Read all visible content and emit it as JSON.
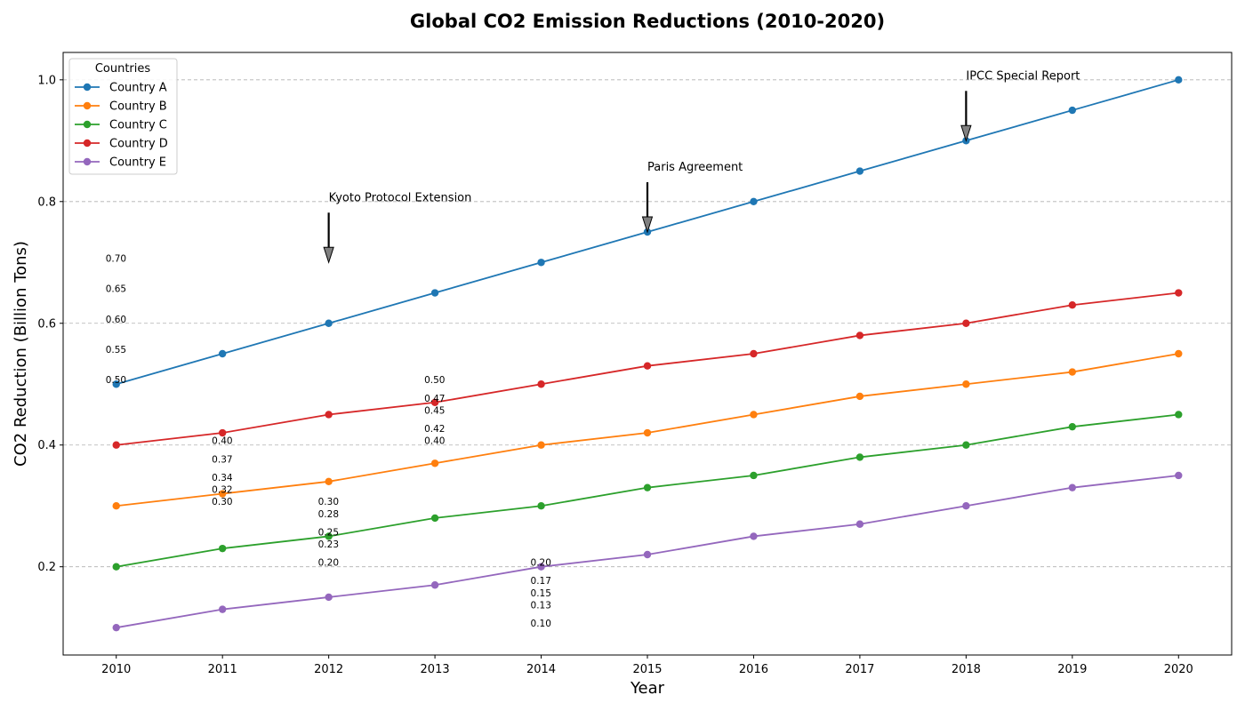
{
  "chart_data": {
    "type": "line",
    "title": "Global CO2 Emission Reductions (2010-2020)",
    "xlabel": "Year",
    "ylabel": "CO2 Reduction (Billion Tons)",
    "x": [
      2010,
      2011,
      2012,
      2013,
      2014,
      2015,
      2016,
      2017,
      2018,
      2019,
      2020
    ],
    "x_tick_labels": [
      "2010",
      "2011",
      "2012",
      "2013",
      "2014",
      "2015",
      "2016",
      "2017",
      "2018",
      "2019",
      "2020"
    ],
    "xlim": [
      2009.5,
      2020.5
    ],
    "ylim": [
      0.055,
      1.045
    ],
    "y_ticks": [
      0.2,
      0.4,
      0.6,
      0.8,
      1.0
    ],
    "y_tick_labels": [
      "0.2",
      "0.4",
      "0.6",
      "0.8",
      "1.0"
    ],
    "grid": "horizontal dashed",
    "legend": {
      "title": "Countries",
      "position": "top-left"
    },
    "series": [
      {
        "name": "Country A",
        "color": "#1f77b4",
        "values": [
          0.5,
          0.55,
          0.6,
          0.65,
          0.7,
          0.75,
          0.8,
          0.85,
          0.9,
          0.95,
          1.0
        ]
      },
      {
        "name": "Country B",
        "color": "#ff7f0e",
        "values": [
          0.3,
          0.32,
          0.34,
          0.37,
          0.4,
          0.42,
          0.45,
          0.48,
          0.5,
          0.52,
          0.55
        ]
      },
      {
        "name": "Country C",
        "color": "#2ca02c",
        "values": [
          0.2,
          0.23,
          0.25,
          0.28,
          0.3,
          0.33,
          0.35,
          0.38,
          0.4,
          0.43,
          0.45
        ]
      },
      {
        "name": "Country D",
        "color": "#d62728",
        "values": [
          0.4,
          0.42,
          0.45,
          0.47,
          0.5,
          0.53,
          0.55,
          0.58,
          0.6,
          0.63,
          0.65
        ]
      },
      {
        "name": "Country E",
        "color": "#9467bd",
        "values": [
          0.1,
          0.13,
          0.15,
          0.17,
          0.2,
          0.22,
          0.25,
          0.27,
          0.3,
          0.33,
          0.35
        ]
      }
    ],
    "value_labels": [
      {
        "x": 2010,
        "labels": [
          {
            "text": "0.50",
            "y": 0.5
          },
          {
            "text": "0.55",
            "y": 0.55
          },
          {
            "text": "0.60",
            "y": 0.6
          },
          {
            "text": "0.65",
            "y": 0.65
          },
          {
            "text": "0.70",
            "y": 0.7
          }
        ]
      },
      {
        "x": 2011,
        "labels": [
          {
            "text": "0.30",
            "y": 0.3
          },
          {
            "text": "0.32",
            "y": 0.32
          },
          {
            "text": "0.34",
            "y": 0.34
          },
          {
            "text": "0.37",
            "y": 0.37
          },
          {
            "text": "0.40",
            "y": 0.4
          }
        ]
      },
      {
        "x": 2012,
        "labels": [
          {
            "text": "0.20",
            "y": 0.2
          },
          {
            "text": "0.23",
            "y": 0.23
          },
          {
            "text": "0.25",
            "y": 0.25
          },
          {
            "text": "0.28",
            "y": 0.28
          },
          {
            "text": "0.30",
            "y": 0.3
          }
        ]
      },
      {
        "x": 2013,
        "labels": [
          {
            "text": "0.40",
            "y": 0.4
          },
          {
            "text": "0.42",
            "y": 0.42
          },
          {
            "text": "0.45",
            "y": 0.45
          },
          {
            "text": "0.47",
            "y": 0.47
          },
          {
            "text": "0.50",
            "y": 0.5
          }
        ]
      },
      {
        "x": 2014,
        "labels": [
          {
            "text": "0.10",
            "y": 0.1
          },
          {
            "text": "0.13",
            "y": 0.13
          },
          {
            "text": "0.15",
            "y": 0.15
          },
          {
            "text": "0.17",
            "y": 0.17
          },
          {
            "text": "0.20",
            "y": 0.2
          }
        ]
      }
    ],
    "annotations": [
      {
        "text": "Kyoto Protocol Extension",
        "x": 2012,
        "y": 0.7
      },
      {
        "text": "Paris Agreement",
        "x": 2015,
        "y": 0.75
      },
      {
        "text": "IPCC Special Report",
        "x": 2018,
        "y": 0.9
      }
    ]
  }
}
